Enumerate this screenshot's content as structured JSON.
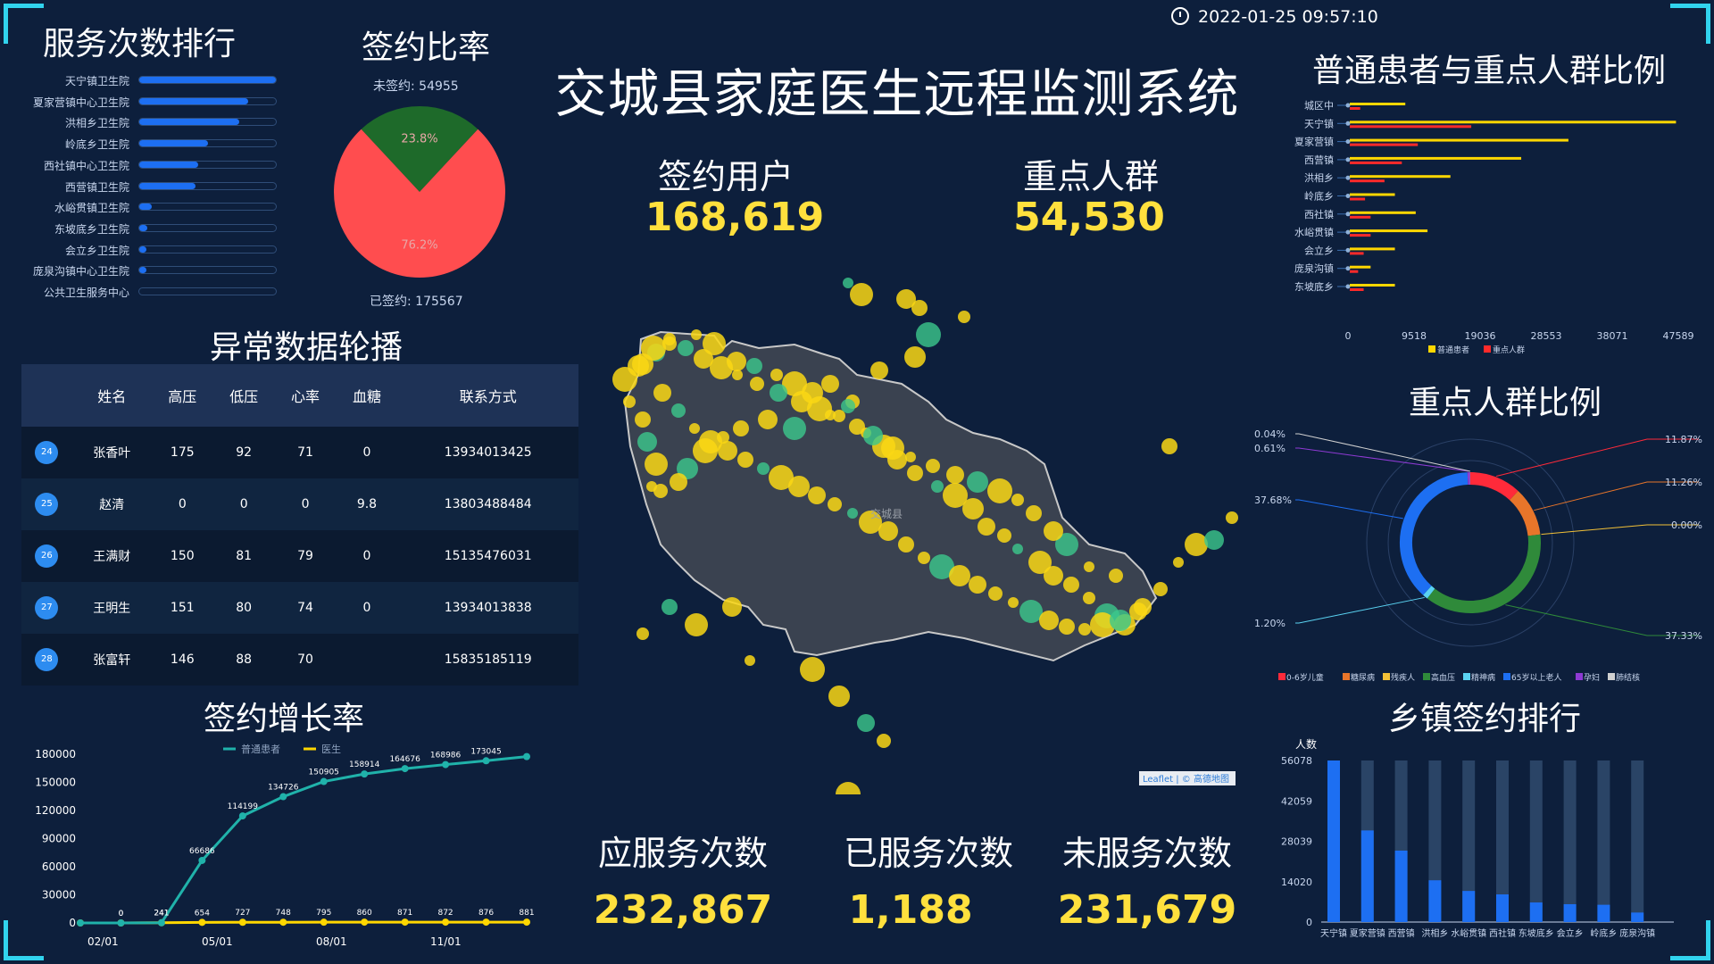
{
  "header": {
    "title": "交城县家庭医生远程监测系统",
    "time": "2022-01-25 09:57:10"
  },
  "panels": {
    "service_rank": "服务次数排行",
    "sign_ratio": "签约比率",
    "anomaly": "异常数据轮播",
    "growth": "签约增长率",
    "normal_vs_key": "普通患者与重点人群比例",
    "key_ratio": "重点人群比例",
    "town_rank": "乡镇签约排行"
  },
  "stats": {
    "signed_users_label": "签约用户",
    "signed_users": "168,619",
    "key_group_label": "重点人群",
    "key_group": "54,530",
    "should_serve_label": "应服务次数",
    "should_serve": "232,867",
    "served_label": "已服务次数",
    "served": "1,188",
    "not_served_label": "未服务次数",
    "not_served": "231,679"
  },
  "chart_data": [
    {
      "type": "bar",
      "orientation": "horizontal",
      "id": "service_rank",
      "categories": [
        "天宁镇卫生院",
        "夏家营镇中心卫生院",
        "洪相乡卫生院",
        "岭底乡卫生院",
        "西社镇中心卫生院",
        "西营镇卫生院",
        "水峪贯镇卫生院",
        "东坡底乡卫生院",
        "会立乡卫生院",
        "庞泉沟镇中心卫生院",
        "公共卫生服务中心"
      ],
      "values": [
        100,
        80,
        73,
        50,
        43,
        41,
        9,
        6,
        5,
        5,
        0
      ],
      "xlim": [
        0,
        100
      ]
    },
    {
      "type": "pie",
      "id": "sign_ratio",
      "slices": [
        {
          "name": "未签约",
          "value": 54955,
          "label": "23.8%",
          "color": "#1e6a2a"
        },
        {
          "name": "已签约",
          "value": 175567,
          "label": "76.2%",
          "color": "#ff4d4f"
        }
      ],
      "top_label": "未签约: 54955",
      "bottom_label": "已签约: 175567"
    },
    {
      "type": "line",
      "id": "growth",
      "x_ticks": [
        "02/01",
        "05/01",
        "08/01",
        "11/01"
      ],
      "ylim": [
        0,
        180000
      ],
      "y_ticks": [
        "0",
        "30000",
        "60000",
        "90000",
        "120000",
        "150000",
        "180000"
      ],
      "series": [
        {
          "name": "普通患者",
          "color": "#20b2aa",
          "values": [
            0,
            0,
            241,
            66686,
            114199,
            134726,
            150905,
            158914,
            164676,
            168986,
            173045,
            177500
          ]
        },
        {
          "name": "医生",
          "color": "#ffd700",
          "values": [
            0,
            0,
            241,
            654,
            727,
            748,
            795,
            860,
            871,
            872,
            876,
            881
          ]
        }
      ]
    },
    {
      "type": "bar",
      "orientation": "horizontal",
      "id": "normal_vs_key",
      "categories": [
        "城区中",
        "天宁镇",
        "夏家营镇",
        "西营镇",
        "洪相乡",
        "岭底乡",
        "西社镇",
        "水峪贯镇",
        "会立乡",
        "庞泉沟镇",
        "东坡底乡"
      ],
      "x_ticks": [
        "0",
        "9518",
        "19036",
        "28553",
        "38071",
        "47589"
      ],
      "xlim": [
        0,
        47589
      ],
      "series": [
        {
          "name": "普通患者",
          "color": "#ffd700",
          "values": [
            8000,
            47000,
            31500,
            24700,
            14500,
            6500,
            9500,
            11200,
            6500,
            3000,
            6500
          ]
        },
        {
          "name": "重点人群",
          "color": "#ff2a2a",
          "values": [
            1500,
            17500,
            9800,
            7500,
            5000,
            2200,
            3000,
            3000,
            2000,
            1200,
            2000
          ]
        }
      ]
    },
    {
      "type": "pie",
      "subtype": "donut",
      "id": "key_ratio",
      "slices": [
        {
          "name": "0-6岁儿童",
          "label": "11.87%",
          "value": 11.87,
          "color": "#ff2a3a"
        },
        {
          "name": "糖尿病",
          "label": "11.26%",
          "value": 11.26,
          "color": "#e8752a"
        },
        {
          "name": "残疾人",
          "label": "0.00%",
          "value": 0.0,
          "color": "#f2c037"
        },
        {
          "name": "高血压",
          "label": "37.33%",
          "value": 37.33,
          "color": "#2f8a3a"
        },
        {
          "name": "精神病",
          "label": "1.20%",
          "value": 1.2,
          "color": "#5ad3f2"
        },
        {
          "name": "65岁以上老人",
          "label": "37.68%",
          "value": 37.68,
          "color": "#1d6ff2"
        },
        {
          "name": "孕妇",
          "label": "0.61%",
          "value": 0.61,
          "color": "#8e3ad3"
        },
        {
          "name": "肺结核",
          "label": "0.04%",
          "value": 0.04,
          "color": "#d0d0d0"
        }
      ]
    },
    {
      "type": "bar",
      "id": "town_rank",
      "ylabel": "人数",
      "y_ticks": [
        "0",
        "14020",
        "28039",
        "42059",
        "56078"
      ],
      "ylim": [
        0,
        56078
      ],
      "categories": [
        "天宁镇",
        "夏家营镇",
        "西营镇",
        "洪相乡",
        "水峪贯镇",
        "西社镇",
        "东坡底乡",
        "会立乡",
        "岭底乡",
        "庞泉沟镇"
      ],
      "values": [
        56078,
        31800,
        24800,
        14500,
        10800,
        9600,
        6800,
        6200,
        6000,
        3300
      ]
    }
  ],
  "anomaly_table": {
    "headers": [
      "",
      "姓名",
      "高压",
      "低压",
      "心率",
      "血糖",
      "联系方式"
    ],
    "rows": [
      {
        "id": "24",
        "name": "张香叶",
        "sys": "175",
        "dia": "92",
        "hr": "71",
        "glu": "0",
        "phone": "13934013425"
      },
      {
        "id": "25",
        "name": "赵清",
        "sys": "0",
        "dia": "0",
        "hr": "0",
        "glu": "9.8",
        "phone": "13803488484"
      },
      {
        "id": "26",
        "name": "王满财",
        "sys": "150",
        "dia": "81",
        "hr": "79",
        "glu": "0",
        "phone": "15135476031"
      },
      {
        "id": "27",
        "name": "王明生",
        "sys": "151",
        "dia": "80",
        "hr": "74",
        "glu": "0",
        "phone": "13934013838"
      },
      {
        "id": "28",
        "name": "张富轩",
        "sys": "146",
        "dia": "88",
        "hr": "70",
        "glu": "",
        "phone": "15835185119"
      }
    ]
  },
  "map": {
    "region_label": "交城县",
    "attribution": "Leaflet | © 高德地图"
  }
}
